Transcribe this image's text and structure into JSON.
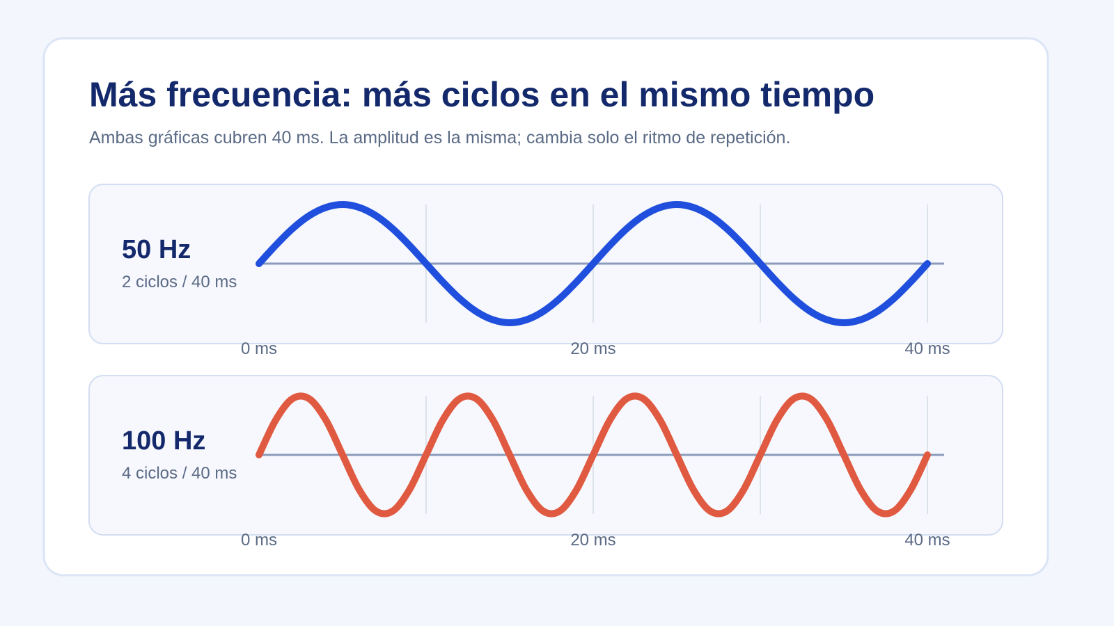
{
  "header": {
    "title": "Más frecuencia: más ciclos en el mismo tiempo",
    "subtitle": "Ambas gráficas cubren 40 ms. La amplitud es la misma; cambia solo el ritmo de repetición."
  },
  "chart_data": [
    {
      "type": "line",
      "title": "50 Hz",
      "subtitle": "2 ciclos / 40 ms",
      "color": "#1f4fdc",
      "x": [
        0,
        1,
        2,
        3,
        4,
        5,
        6,
        7,
        8,
        9,
        10,
        11,
        12,
        13,
        14,
        15,
        16,
        17,
        18,
        19,
        20,
        21,
        22,
        23,
        24,
        25,
        26,
        27,
        28,
        29,
        30,
        31,
        32,
        33,
        34,
        35,
        36,
        37,
        38,
        39,
        40
      ],
      "values": [
        0,
        0.31,
        0.59,
        0.81,
        0.95,
        1,
        0.95,
        0.81,
        0.59,
        0.31,
        0,
        -0.31,
        -0.59,
        -0.81,
        -0.95,
        -1,
        -0.95,
        -0.81,
        -0.59,
        -0.31,
        0,
        0.31,
        0.59,
        0.81,
        0.95,
        1,
        0.95,
        0.81,
        0.59,
        0.31,
        0,
        -0.31,
        -0.59,
        -0.81,
        -0.95,
        -1,
        -0.95,
        -0.81,
        -0.59,
        -0.31,
        0
      ],
      "xlim": [
        0,
        40
      ],
      "ylim": [
        -1,
        1
      ],
      "xticks": [
        {
          "value": 0,
          "label": "0 ms"
        },
        {
          "value": 20,
          "label": "20 ms"
        },
        {
          "value": 40,
          "label": "40 ms"
        }
      ],
      "grid_x": [
        10,
        20,
        30,
        40
      ]
    },
    {
      "type": "line",
      "title": "100 Hz",
      "subtitle": "4 ciclos / 40 ms",
      "color": "#e05a42",
      "x": [
        0,
        1,
        2,
        3,
        4,
        5,
        6,
        7,
        8,
        9,
        10,
        11,
        12,
        13,
        14,
        15,
        16,
        17,
        18,
        19,
        20,
        21,
        22,
        23,
        24,
        25,
        26,
        27,
        28,
        29,
        30,
        31,
        32,
        33,
        34,
        35,
        36,
        37,
        38,
        39,
        40
      ],
      "values": [
        0,
        0.59,
        0.95,
        0.95,
        0.59,
        0,
        -0.59,
        -0.95,
        -0.95,
        -0.59,
        0,
        0.59,
        0.95,
        0.95,
        0.59,
        0,
        -0.59,
        -0.95,
        -0.95,
        -0.59,
        0,
        0.59,
        0.95,
        0.95,
        0.59,
        0,
        -0.59,
        -0.95,
        -0.95,
        -0.59,
        0,
        0.59,
        0.95,
        0.95,
        0.59,
        0,
        -0.59,
        -0.95,
        -0.95,
        -0.59,
        0
      ],
      "xlim": [
        0,
        40
      ],
      "ylim": [
        -1,
        1
      ],
      "xticks": [
        {
          "value": 0,
          "label": "0 ms"
        },
        {
          "value": 20,
          "label": "20 ms"
        },
        {
          "value": 40,
          "label": "40 ms"
        }
      ],
      "grid_x": [
        10,
        20,
        30,
        40
      ]
    }
  ]
}
